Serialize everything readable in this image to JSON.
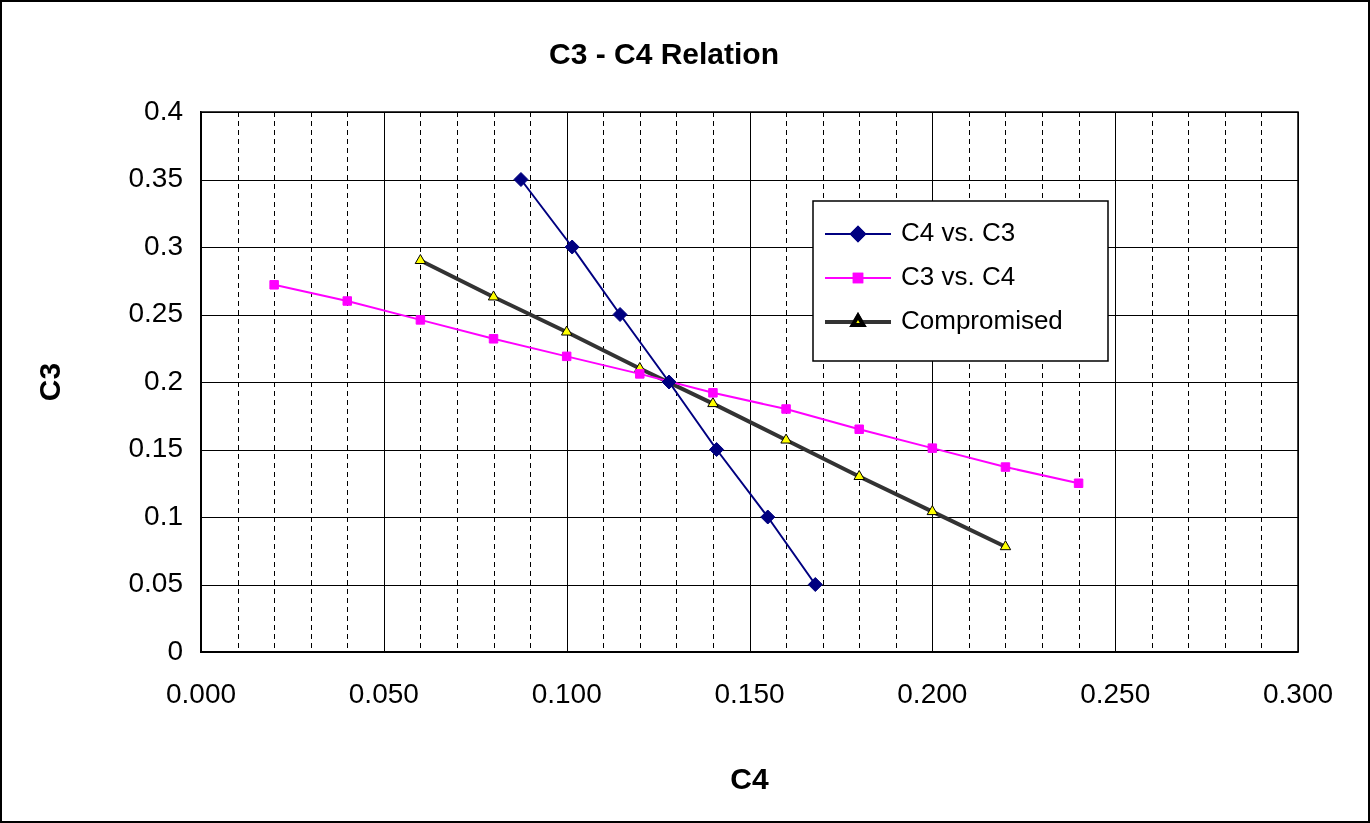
{
  "chart_data": {
    "type": "line",
    "title": "C3 - C4 Relation",
    "xlabel": "C4",
    "ylabel": "C3",
    "xlim": [
      0,
      0.3
    ],
    "xticks": [
      {
        "value": 0,
        "label": "0.000"
      },
      {
        "value": 0.01,
        "label": null
      },
      {
        "value": 0.02,
        "label": null
      },
      {
        "value": 0.03,
        "label": null
      },
      {
        "value": 0.04,
        "label": null
      },
      {
        "value": 0.05,
        "label": "0.050"
      },
      {
        "value": 0.06,
        "label": null
      },
      {
        "value": 0.07,
        "label": null
      },
      {
        "value": 0.08,
        "label": null
      },
      {
        "value": 0.09,
        "label": null
      },
      {
        "value": 0.1,
        "label": "0.100"
      },
      {
        "value": 0.11,
        "label": null
      },
      {
        "value": 0.12,
        "label": null
      },
      {
        "value": 0.13,
        "label": null
      },
      {
        "value": 0.14,
        "label": null
      },
      {
        "value": 0.15,
        "label": "0.150"
      },
      {
        "value": 0.16,
        "label": null
      },
      {
        "value": 0.17,
        "label": null
      },
      {
        "value": 0.18,
        "label": null
      },
      {
        "value": 0.19,
        "label": null
      },
      {
        "value": 0.2,
        "label": "0.200"
      },
      {
        "value": 0.21,
        "label": null
      },
      {
        "value": 0.22,
        "label": null
      },
      {
        "value": 0.23,
        "label": null
      },
      {
        "value": 0.24,
        "label": null
      },
      {
        "value": 0.25,
        "label": "0.250"
      },
      {
        "value": 0.26,
        "label": null
      },
      {
        "value": 0.27,
        "label": null
      },
      {
        "value": 0.28,
        "label": null
      },
      {
        "value": 0.29,
        "label": null
      },
      {
        "value": 0.3,
        "label": "0.300"
      }
    ],
    "ylim": [
      0,
      0.4
    ],
    "yticks": [
      0,
      0.05,
      0.1,
      0.15,
      0.2,
      0.25,
      0.3,
      0.35,
      0.4
    ],
    "grid": true,
    "legend": "right",
    "line_style": "solid",
    "series": [
      {
        "name": "C4 vs. C3",
        "color": "#000080",
        "marker": "diamond",
        "x": [
          0.0875,
          0.1015,
          0.1146,
          0.128,
          0.141,
          0.155,
          0.168
        ],
        "values": [
          0.35,
          0.3,
          0.25,
          0.2,
          0.15,
          0.1,
          0.05
        ]
      },
      {
        "name": "C3 vs. C4",
        "color": "#ff00ff",
        "marker": "square",
        "x": [
          0.02,
          0.04,
          0.06,
          0.08,
          0.1,
          0.12,
          0.14,
          0.16,
          0.18,
          0.2,
          0.22,
          0.24
        ],
        "values": [
          0.272,
          0.26,
          0.246,
          0.232,
          0.219,
          0.206,
          0.192,
          0.18,
          0.165,
          0.151,
          0.137,
          0.125
        ]
      },
      {
        "name": "Compromised",
        "color": "#333333",
        "marker": "triangle",
        "x": [
          0.06,
          0.08,
          0.1,
          0.12,
          0.14,
          0.16,
          0.18,
          0.2,
          0.22
        ],
        "values": [
          0.29,
          0.263,
          0.237,
          0.21,
          0.184,
          0.157,
          0.13,
          0.104,
          0.078
        ]
      }
    ]
  }
}
